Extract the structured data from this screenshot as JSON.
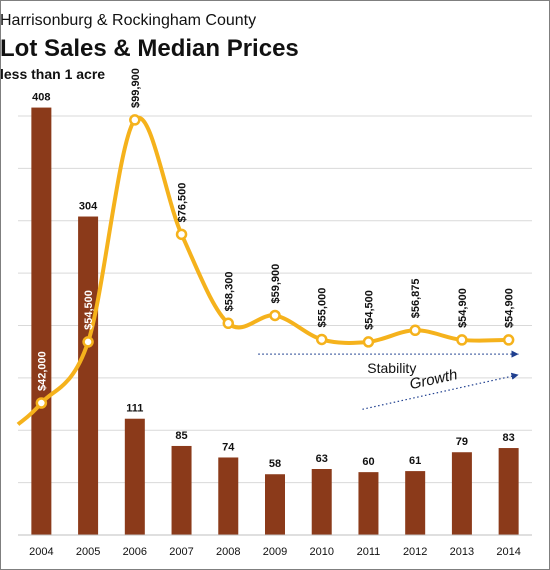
{
  "chart_data": {
    "type": "bar",
    "title": "Lot Sales & Median Prices",
    "supertitle": "Harrisonburg & Rockingham County",
    "subtitle": "less than 1 acre",
    "categories": [
      "2004",
      "2005",
      "2006",
      "2007",
      "2008",
      "2009",
      "2010",
      "2011",
      "2012",
      "2013",
      "2014"
    ],
    "series": [
      {
        "kind": "bar",
        "values": [
          408,
          304,
          111,
          85,
          74,
          58,
          63,
          60,
          61,
          79,
          83
        ],
        "labels": [
          "408",
          "304",
          "111",
          "85",
          "74",
          "58",
          "63",
          "60",
          "61",
          "79",
          "83"
        ],
        "color": "#8b3a1a"
      },
      {
        "kind": "line",
        "values": [
          42000,
          54500,
          99900,
          76500,
          58300,
          59900,
          55000,
          54500,
          56875,
          54900,
          54900
        ],
        "labels": [
          "$42,000",
          "$54,500",
          "$99,900",
          "$76,500",
          "$58,300",
          "$59,900",
          "$55,000",
          "$54,500",
          "$56,875",
          "$54,900",
          "$54,900"
        ],
        "color": "#f5b21c"
      }
    ],
    "bar_ylim": [
      0,
      420
    ],
    "line_ylim": [
      15000,
      105000
    ],
    "grid": true,
    "annotations": [
      {
        "text": "Stability",
        "arrow_color": "#1f3f8f"
      },
      {
        "text": "Growth",
        "arrow_color": "#1f3f8f"
      }
    ]
  }
}
